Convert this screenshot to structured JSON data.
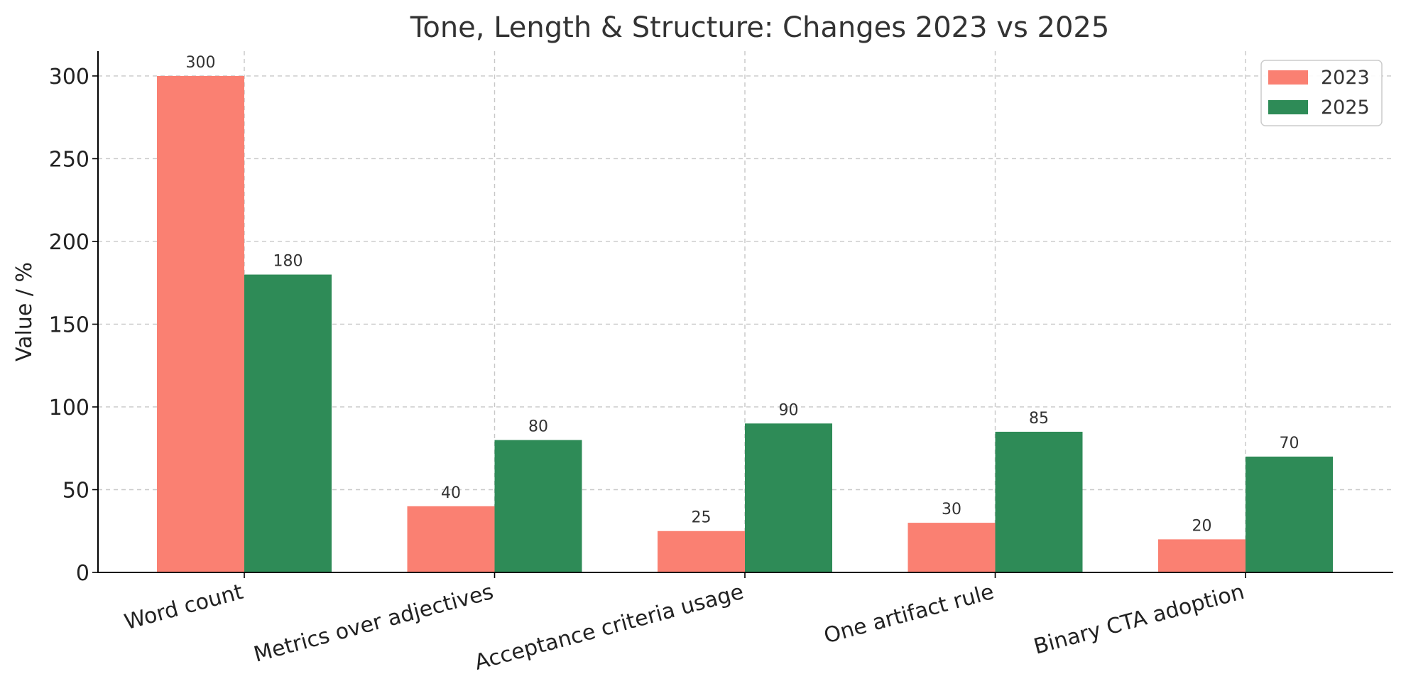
{
  "chart_data": {
    "type": "bar",
    "title": "Tone, Length & Structure: Changes 2023 vs 2025",
    "xlabel": "",
    "ylabel": "Value / %",
    "categories": [
      "Word count",
      "Metrics over adjectives",
      "Acceptance criteria usage",
      "One artifact rule",
      "Binary CTA adoption"
    ],
    "series": [
      {
        "name": "2023",
        "color": "#fa8072",
        "values": [
          300,
          40,
          25,
          30,
          20
        ]
      },
      {
        "name": "2025",
        "color": "#2e8b57",
        "values": [
          180,
          80,
          90,
          85,
          70
        ]
      }
    ],
    "ylim": [
      0,
      315
    ],
    "yticks": [
      0,
      50,
      100,
      150,
      200,
      250,
      300
    ],
    "grid": true,
    "legend": "top-right",
    "xtick_rotation": 15
  }
}
